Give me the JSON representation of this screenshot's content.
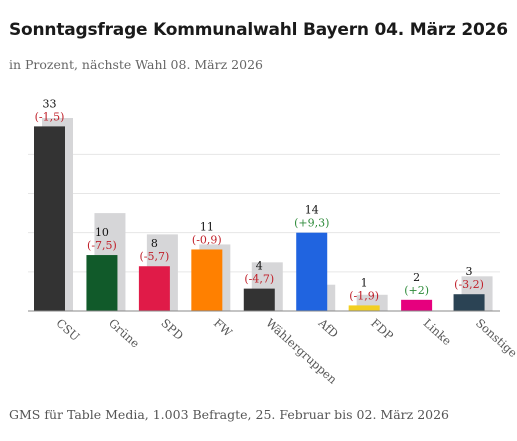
{
  "header": {
    "title": "Sonntagsfrage Kommunalwahl Bayern 04. März 2026",
    "subtitle": "in Prozent, nächste Wahl 08. März 2026"
  },
  "footer": {
    "source": "GMS für Table Media, 1.003 Befragte, 25. Februar bis 02. März 2026"
  },
  "colors": {
    "previous": "#d6d6d8",
    "gain": "#2e8b3a",
    "loss": "#c0202a",
    "grid": "#e6e6e6",
    "axis": "#888888"
  },
  "chart_data": {
    "type": "bar",
    "ylim": [
      0,
      35
    ],
    "grid": true,
    "gridlines": [
      0,
      7,
      14,
      21,
      28
    ],
    "categories": [
      "CSU",
      "Grüne",
      "SPD",
      "FW",
      "Wählergruppen",
      "AfD",
      "FDP",
      "Linke",
      "Sonstige"
    ],
    "series": [
      {
        "values": [
          33,
          10,
          8,
          11,
          4,
          14,
          1,
          2,
          3
        ],
        "colors": [
          "#333333",
          "#115a2a",
          "#e01b48",
          "#ff8000",
          "#333333",
          "#2064e0",
          "#f2cf21",
          "#e6007e",
          "#2b4354"
        ]
      },
      {
        "values": [
          34.5,
          17.5,
          13.7,
          11.9,
          8.7,
          4.7,
          2.9,
          0,
          6.2
        ],
        "color": "#d6d6d8"
      }
    ],
    "changes": [
      "(-1,5)",
      "(-7,5)",
      "(-5,7)",
      "(-0,9)",
      "(-4,7)",
      "(+9,3)",
      "(-1,9)",
      "(+2)",
      "(-3,2)"
    ]
  }
}
